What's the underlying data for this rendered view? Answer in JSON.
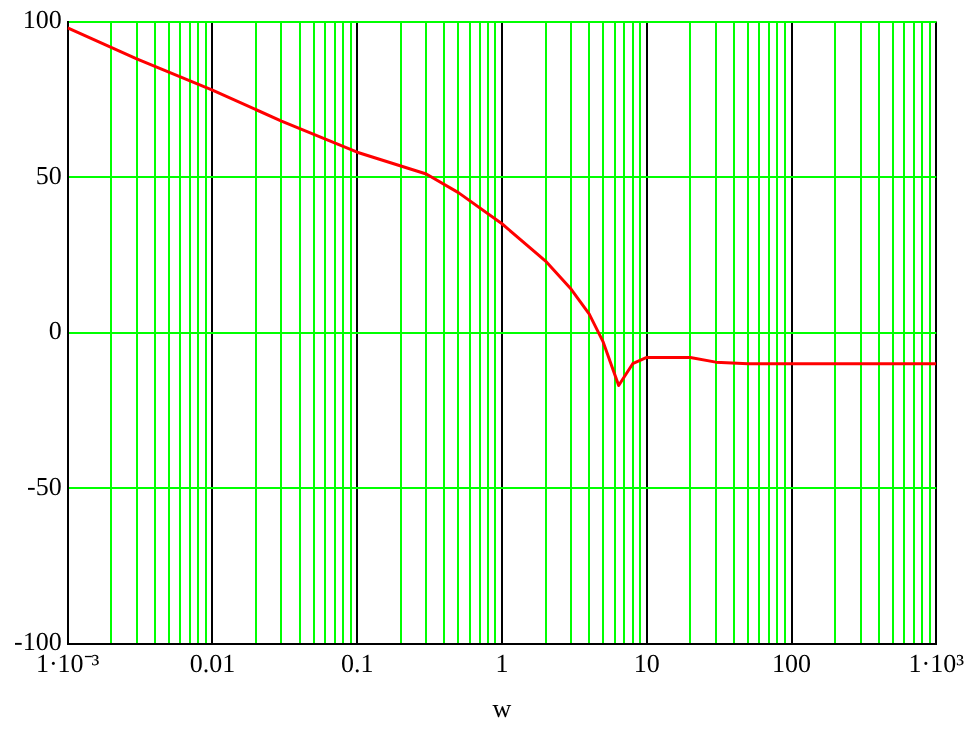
{
  "chart_data": {
    "type": "line",
    "xlabel": "w",
    "log": "x",
    "x": [
      0.001,
      0.003,
      0.01,
      0.03,
      0.1,
      0.3,
      0.5,
      1,
      2,
      3,
      4,
      5,
      6.4,
      8,
      10,
      20,
      30,
      50,
      100,
      1000
    ],
    "series": [
      {
        "color": "#ff0000",
        "values": [
          98,
          88,
          78,
          68,
          58,
          51,
          45,
          35,
          23,
          14,
          6,
          -3,
          -17,
          -10,
          -8,
          -8,
          -9.5,
          -10,
          -10,
          -10
        ]
      }
    ],
    "xlim": [
      0.001,
      1000
    ],
    "ylim": [
      -100,
      100
    ],
    "xticks": [
      {
        "value": 0.001,
        "label": "1·10⁻³"
      },
      {
        "value": 0.002,
        "label": null
      },
      {
        "value": 0.003,
        "label": null
      },
      {
        "value": 0.004,
        "label": null
      },
      {
        "value": 0.005,
        "label": null
      },
      {
        "value": 0.006,
        "label": null
      },
      {
        "value": 0.007,
        "label": null
      },
      {
        "value": 0.008,
        "label": null
      },
      {
        "value": 0.009,
        "label": null
      },
      {
        "value": 0.01,
        "label": "0.01"
      },
      {
        "value": 0.02,
        "label": null
      },
      {
        "value": 0.03,
        "label": null
      },
      {
        "value": 0.04,
        "label": null
      },
      {
        "value": 0.05,
        "label": null
      },
      {
        "value": 0.06,
        "label": null
      },
      {
        "value": 0.07,
        "label": null
      },
      {
        "value": 0.08,
        "label": null
      },
      {
        "value": 0.09,
        "label": null
      },
      {
        "value": 0.1,
        "label": "0.1"
      },
      {
        "value": 0.2,
        "label": null
      },
      {
        "value": 0.3,
        "label": null
      },
      {
        "value": 0.4,
        "label": null
      },
      {
        "value": 0.5,
        "label": null
      },
      {
        "value": 0.6,
        "label": null
      },
      {
        "value": 0.7,
        "label": null
      },
      {
        "value": 0.8,
        "label": null
      },
      {
        "value": 0.9,
        "label": null
      },
      {
        "value": 1,
        "label": "1"
      },
      {
        "value": 2,
        "label": null
      },
      {
        "value": 3,
        "label": null
      },
      {
        "value": 4,
        "label": null
      },
      {
        "value": 5,
        "label": null
      },
      {
        "value": 6,
        "label": null
      },
      {
        "value": 7,
        "label": null
      },
      {
        "value": 8,
        "label": null
      },
      {
        "value": 9,
        "label": null
      },
      {
        "value": 10,
        "label": "10"
      },
      {
        "value": 20,
        "label": null
      },
      {
        "value": 30,
        "label": null
      },
      {
        "value": 40,
        "label": null
      },
      {
        "value": 50,
        "label": null
      },
      {
        "value": 60,
        "label": null
      },
      {
        "value": 70,
        "label": null
      },
      {
        "value": 80,
        "label": null
      },
      {
        "value": 90,
        "label": null
      },
      {
        "value": 100,
        "label": "100"
      },
      {
        "value": 200,
        "label": null
      },
      {
        "value": 300,
        "label": null
      },
      {
        "value": 400,
        "label": null
      },
      {
        "value": 500,
        "label": null
      },
      {
        "value": 600,
        "label": null
      },
      {
        "value": 700,
        "label": null
      },
      {
        "value": 800,
        "label": null
      },
      {
        "value": 900,
        "label": null
      },
      {
        "value": 1000,
        "label": "1·10³"
      }
    ],
    "yticks": [
      -100,
      -50,
      0,
      50,
      100
    ],
    "grid": true,
    "legend": false,
    "marker": "none",
    "line_style": "solid"
  }
}
